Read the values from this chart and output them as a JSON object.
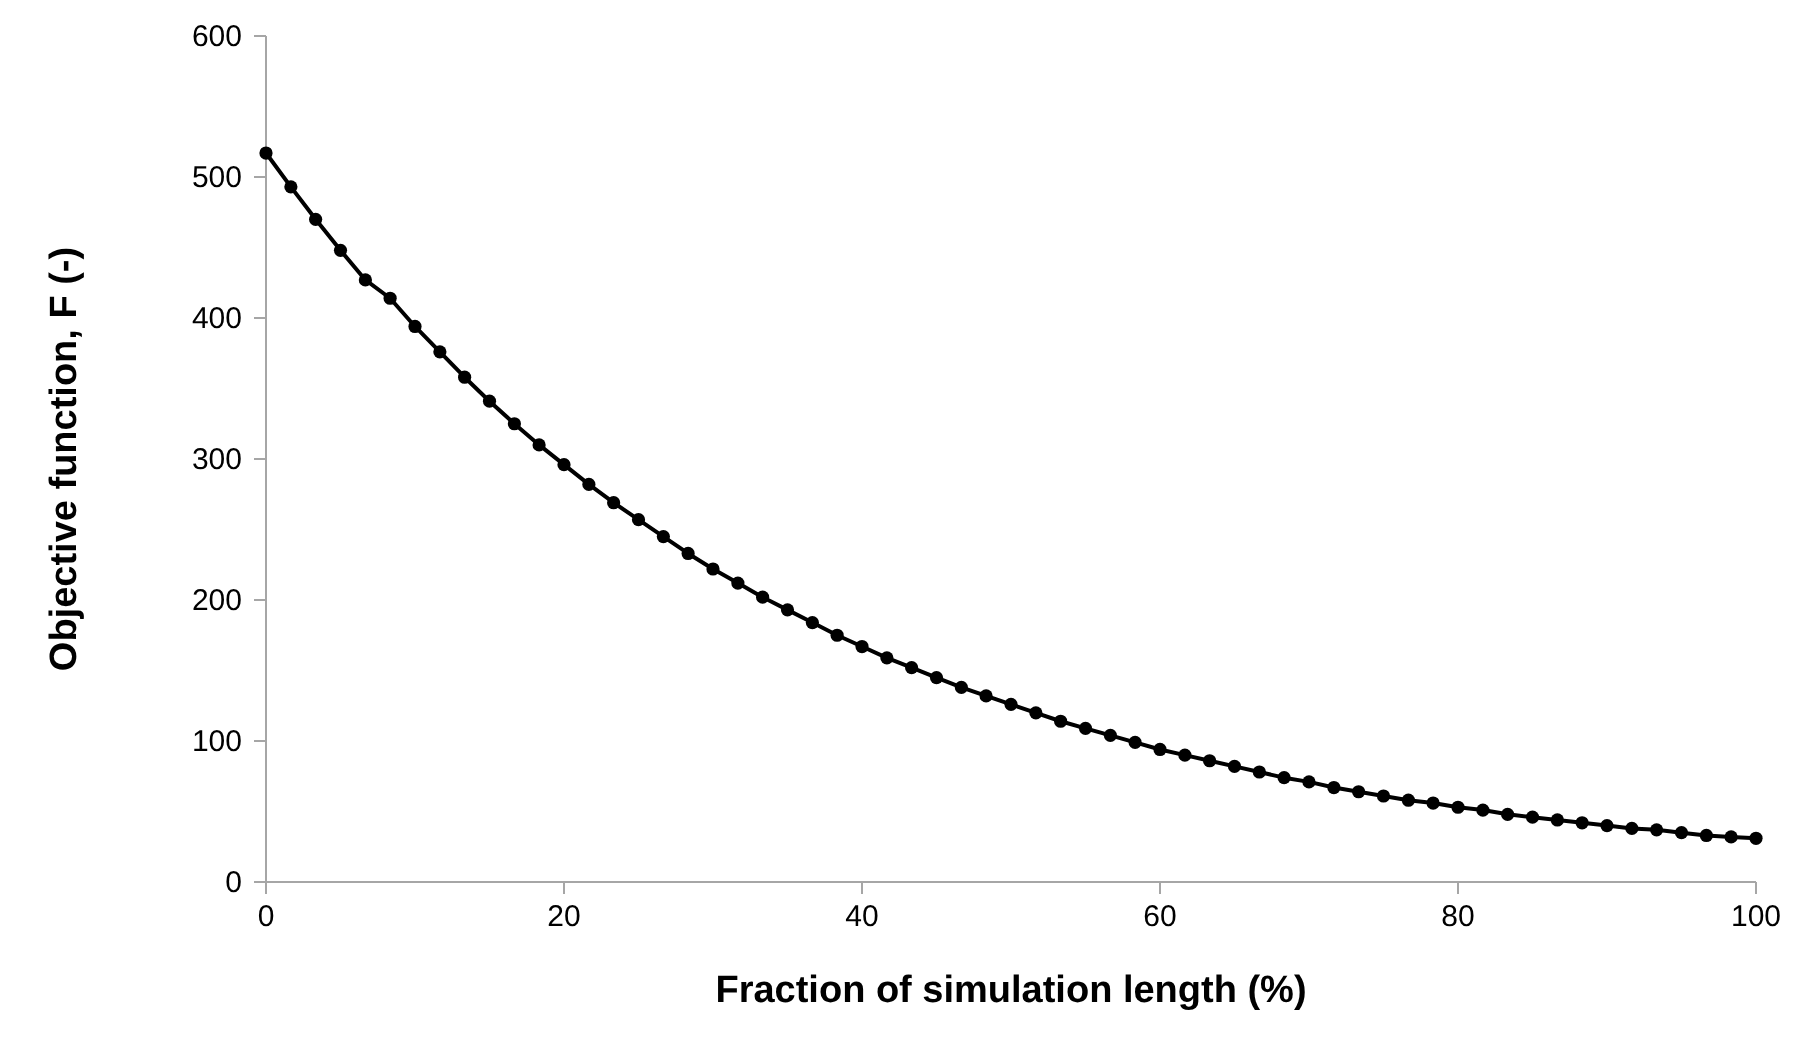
{
  "chart_data": {
    "type": "line",
    "xlabel": "Fraction of simulation length (%)",
    "ylabel": "Objective function, F (-)",
    "x": [
      0,
      1.67,
      3.33,
      5,
      6.67,
      8.33,
      10,
      11.67,
      13.33,
      15,
      16.67,
      18.33,
      20,
      21.67,
      23.33,
      25,
      26.67,
      28.33,
      30,
      31.67,
      33.33,
      35,
      36.67,
      38.33,
      40,
      41.67,
      43.33,
      45,
      46.67,
      48.33,
      50,
      51.67,
      53.33,
      55,
      56.67,
      58.33,
      60,
      61.67,
      63.33,
      65,
      66.67,
      68.33,
      70,
      71.67,
      73.33,
      75,
      76.67,
      78.33,
      80,
      81.67,
      83.33,
      85,
      86.67,
      88.33,
      90,
      91.67,
      93.33,
      95,
      96.67,
      98.33,
      100
    ],
    "series": [
      {
        "color": "#000000",
        "values": [
          517,
          493,
          470,
          448,
          427,
          414,
          394,
          376,
          358,
          341,
          325,
          310,
          296,
          282,
          269,
          257,
          245,
          233,
          222,
          212,
          202,
          193,
          184,
          175,
          167,
          159,
          152,
          145,
          138,
          132,
          126,
          120,
          114,
          109,
          104,
          99,
          94,
          90,
          86,
          82,
          78,
          74,
          71,
          67,
          64,
          61,
          58,
          56,
          53,
          51,
          48,
          46,
          44,
          42,
          40,
          38,
          37,
          35,
          33,
          32,
          31
        ]
      }
    ],
    "xlim": [
      0,
      100
    ],
    "xticks": [
      0,
      20,
      40,
      60,
      80,
      100
    ],
    "ylim": [
      0,
      600
    ],
    "yticks": [
      0,
      100,
      200,
      300,
      400,
      500,
      600
    ],
    "marker": "circle",
    "line_style": "solid",
    "grid": false
  }
}
